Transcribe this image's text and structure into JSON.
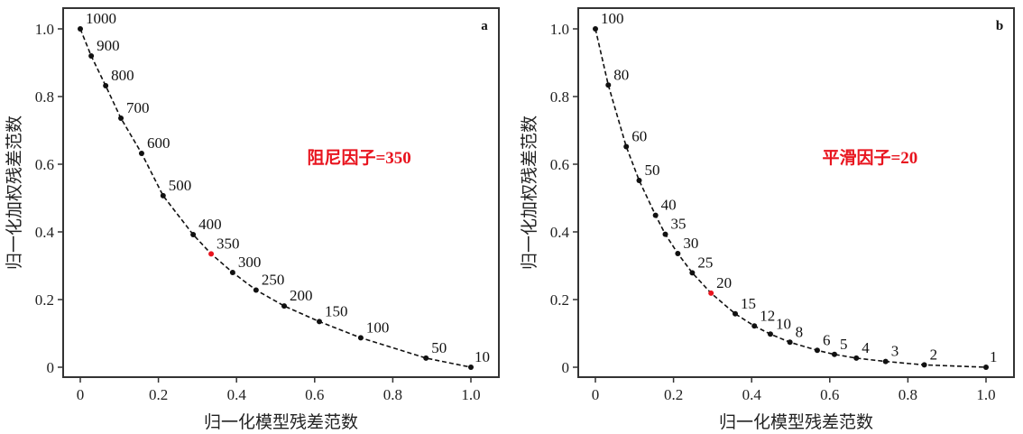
{
  "chart_data": [
    {
      "type": "line",
      "panel_label": "a",
      "xlabel": "归一化模型残差范数",
      "ylabel": "归一化加权残差范数",
      "xlim": [
        0,
        1.0
      ],
      "ylim": [
        0,
        1.0
      ],
      "xticks": [
        "0",
        "0.2",
        "0.4",
        "0.6",
        "0.8",
        "1.0"
      ],
      "yticks": [
        "0",
        "0.2",
        "0.4",
        "0.6",
        "0.8",
        "1.0"
      ],
      "grid": false,
      "annotation": "阻尼因子=350",
      "highlight_label": "350",
      "points": [
        {
          "label": "1000",
          "x": 0.0,
          "y": 1.0
        },
        {
          "label": "900",
          "x": 0.028,
          "y": 0.92
        },
        {
          "label": "800",
          "x": 0.065,
          "y": 0.832
        },
        {
          "label": "700",
          "x": 0.104,
          "y": 0.736
        },
        {
          "label": "600",
          "x": 0.157,
          "y": 0.632
        },
        {
          "label": "500",
          "x": 0.212,
          "y": 0.507
        },
        {
          "label": "400",
          "x": 0.289,
          "y": 0.392
        },
        {
          "label": "350",
          "x": 0.335,
          "y": 0.335
        },
        {
          "label": "300",
          "x": 0.39,
          "y": 0.28
        },
        {
          "label": "250",
          "x": 0.45,
          "y": 0.228
        },
        {
          "label": "200",
          "x": 0.522,
          "y": 0.181
        },
        {
          "label": "150",
          "x": 0.612,
          "y": 0.135
        },
        {
          "label": "100",
          "x": 0.718,
          "y": 0.087
        },
        {
          "label": "50",
          "x": 0.885,
          "y": 0.027
        },
        {
          "label": "10",
          "x": 1.0,
          "y": 0.0
        }
      ]
    },
    {
      "type": "line",
      "panel_label": "b",
      "xlabel": "归一化模型残差范数",
      "ylabel": "归一化加权残差范数",
      "xlim": [
        0,
        1.0
      ],
      "ylim": [
        0,
        1.0
      ],
      "xticks": [
        "0",
        "0.2",
        "0.4",
        "0.6",
        "0.8",
        "1.0"
      ],
      "yticks": [
        "0",
        "0.2",
        "0.4",
        "0.6",
        "0.8",
        "1.0"
      ],
      "grid": false,
      "annotation": "平滑因子=20",
      "highlight_label": "20",
      "points": [
        {
          "label": "100",
          "x": 0.0,
          "y": 1.0
        },
        {
          "label": "80",
          "x": 0.033,
          "y": 0.834
        },
        {
          "label": "60",
          "x": 0.079,
          "y": 0.652
        },
        {
          "label": "50",
          "x": 0.112,
          "y": 0.552
        },
        {
          "label": "40",
          "x": 0.154,
          "y": 0.449
        },
        {
          "label": "35",
          "x": 0.179,
          "y": 0.393
        },
        {
          "label": "30",
          "x": 0.211,
          "y": 0.336
        },
        {
          "label": "25",
          "x": 0.248,
          "y": 0.279
        },
        {
          "label": "20",
          "x": 0.296,
          "y": 0.219
        },
        {
          "label": "15",
          "x": 0.358,
          "y": 0.158
        },
        {
          "label": "12",
          "x": 0.407,
          "y": 0.122
        },
        {
          "label": "10",
          "x": 0.448,
          "y": 0.098
        },
        {
          "label": "8",
          "x": 0.498,
          "y": 0.074
        },
        {
          "label": "6",
          "x": 0.568,
          "y": 0.05
        },
        {
          "label": "5",
          "x": 0.612,
          "y": 0.038
        },
        {
          "label": "4",
          "x": 0.668,
          "y": 0.027
        },
        {
          "label": "3",
          "x": 0.743,
          "y": 0.017
        },
        {
          "label": "2",
          "x": 0.842,
          "y": 0.007
        },
        {
          "label": "1",
          "x": 1.0,
          "y": 0.0
        }
      ]
    }
  ],
  "colors": {
    "point": "#111111",
    "highlight": "#e8141e",
    "annotation": "#e8141e",
    "axis": "#333333"
  }
}
